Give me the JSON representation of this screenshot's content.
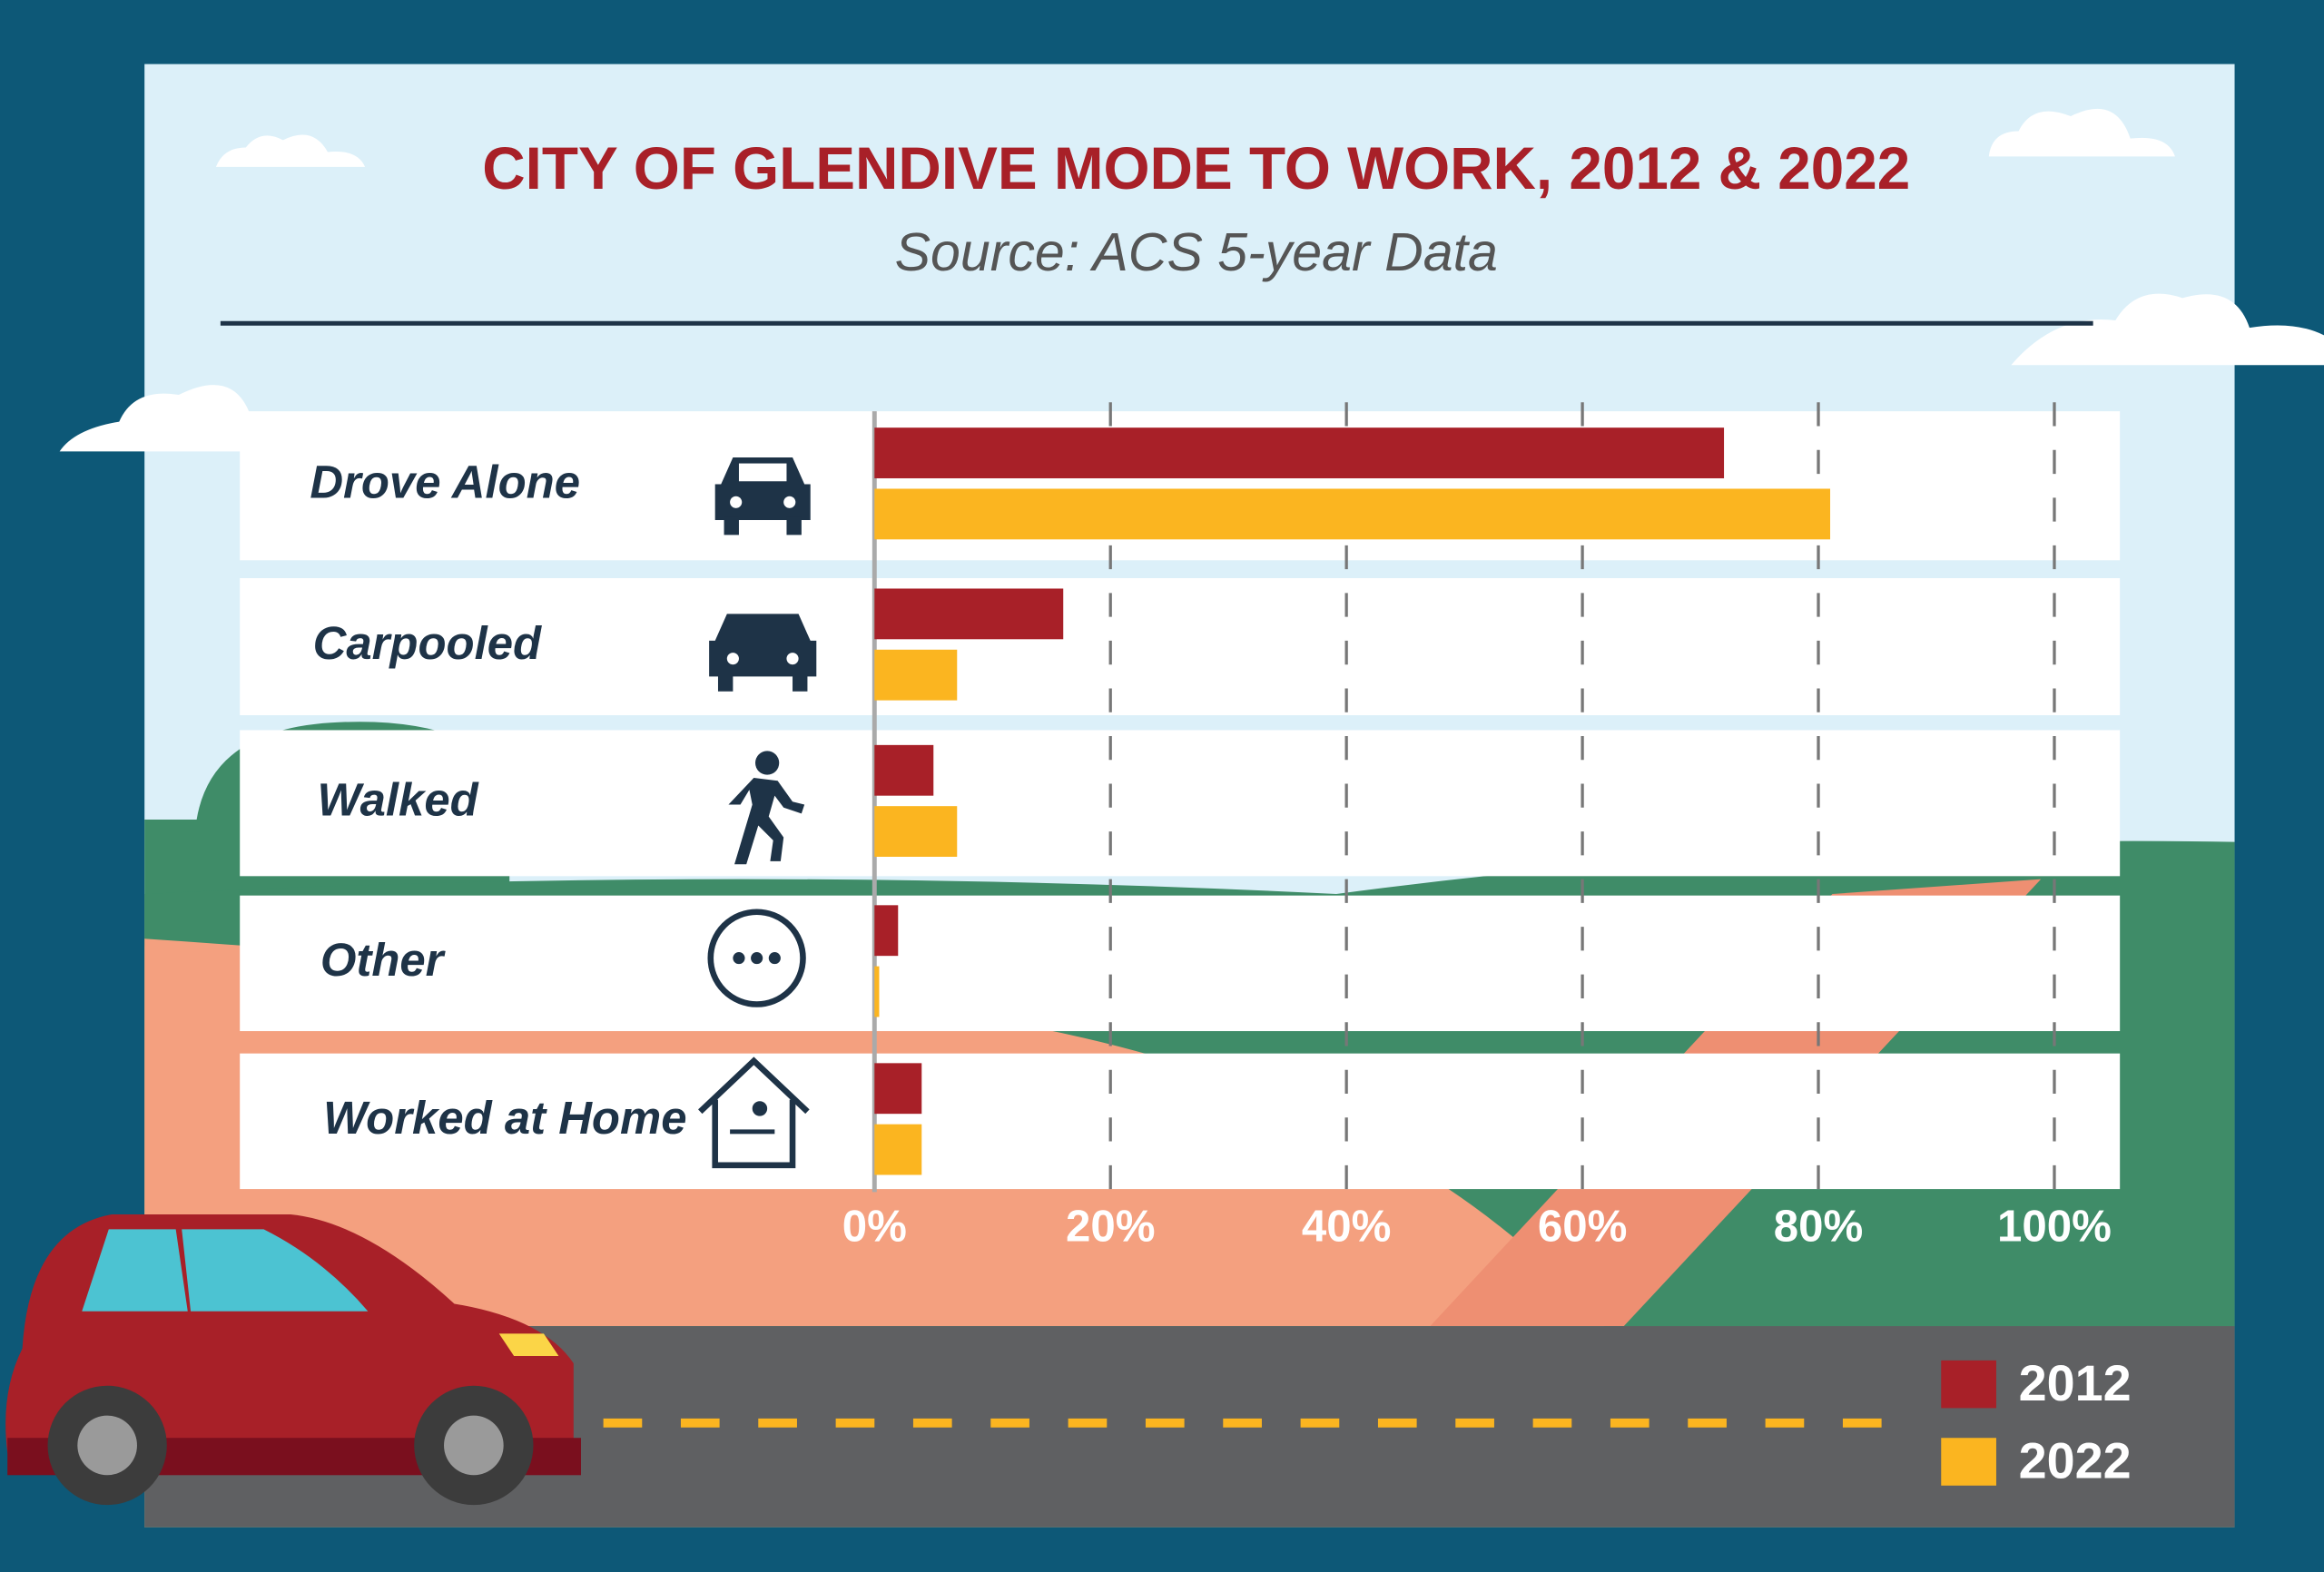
{
  "chart_data": {
    "type": "bar",
    "orientation": "horizontal",
    "title": "CITY OF GLENDIVE MODE TO WORK, 2012 & 2022",
    "subtitle": "Source: ACS 5-year Data",
    "categories": [
      "Drove Alone",
      "Carpooled",
      "Walked",
      "Other",
      "Worked at Home"
    ],
    "series": [
      {
        "name": "2012",
        "color": "#a82028",
        "values": [
          72,
          16,
          5,
          2,
          4
        ]
      },
      {
        "name": "2022",
        "color": "#fbb520",
        "values": [
          81,
          7,
          7,
          0.4,
          4
        ]
      }
    ],
    "xlim": [
      0,
      100
    ],
    "xticks": [
      {
        "value": 0,
        "label": "0%"
      },
      {
        "value": 20,
        "label": "20%"
      },
      {
        "value": 40,
        "label": "40%"
      },
      {
        "value": 60,
        "label": "60%"
      },
      {
        "value": 80,
        "label": "80%"
      },
      {
        "value": 100,
        "label": "100%"
      }
    ],
    "grid": true,
    "legend": "bottom-right"
  }
}
